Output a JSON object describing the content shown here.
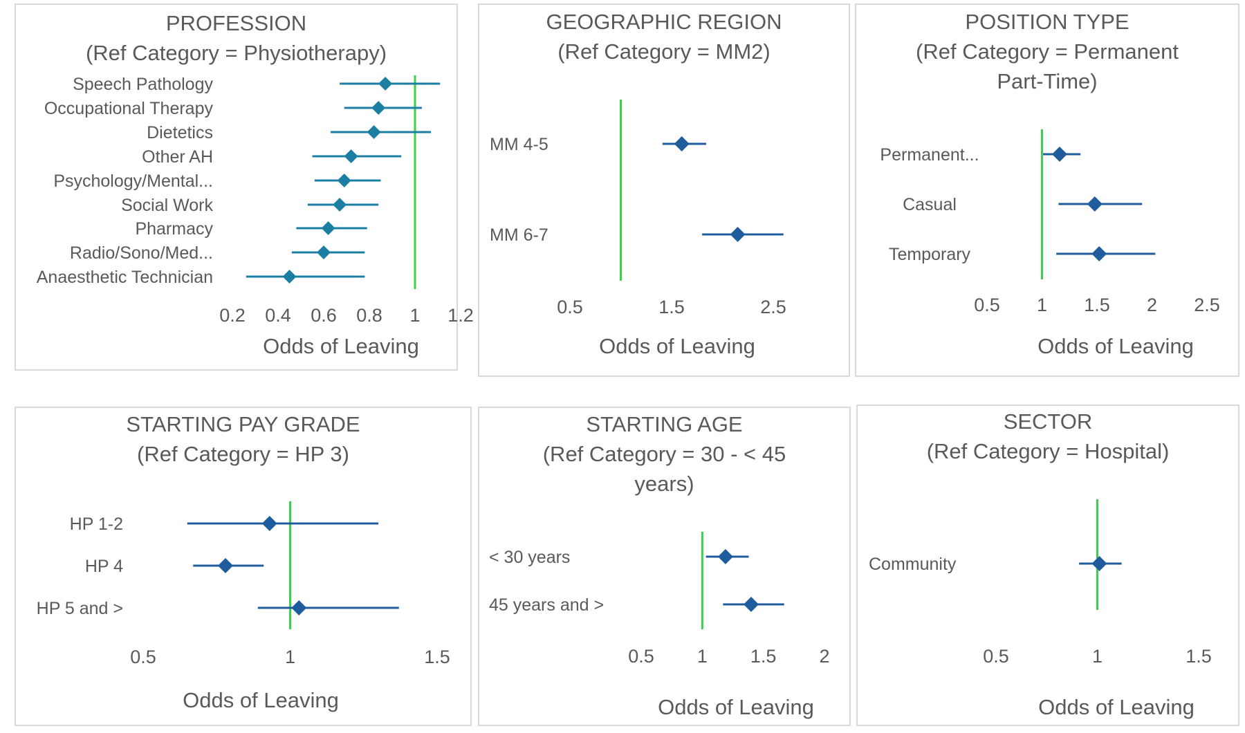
{
  "colors": {
    "reference_line": "#3cd04a",
    "point_light": "#1b7fa3",
    "point_dark": "#1f5c9e",
    "text": "#595959",
    "frame": "#d9d9d9"
  },
  "chart_data": [
    {
      "type": "scatter",
      "subtype": "forest-plot",
      "title": "PROFESSION",
      "subtitle": "(Ref Category = Physiotherapy)",
      "xlabel": "Odds of Leaving",
      "xlim": [
        0.2,
        1.2
      ],
      "xticks": [
        "0.2",
        "0.4",
        "0.6",
        "0.8",
        "1",
        "1.2"
      ],
      "reference": 1,
      "categories": [
        "Speech Pathology",
        "Occupational Therapy",
        "Dietetics",
        "Other AH",
        "Psychology/Mental...",
        "Social Work",
        "Pharmacy",
        "Radio/Sono/Med...",
        "Anaesthetic Technician"
      ],
      "estimate": [
        0.87,
        0.84,
        0.82,
        0.72,
        0.69,
        0.67,
        0.62,
        0.6,
        0.45
      ],
      "lower": [
        0.67,
        0.69,
        0.63,
        0.55,
        0.56,
        0.53,
        0.48,
        0.46,
        0.26
      ],
      "upper": [
        1.11,
        1.03,
        1.07,
        0.94,
        0.85,
        0.84,
        0.79,
        0.78,
        0.78
      ]
    },
    {
      "type": "scatter",
      "subtype": "forest-plot",
      "title": "GEOGRAPHIC REGION",
      "subtitle": "(Ref Category = MM2)",
      "xlabel": "Odds of Leaving",
      "xlim": [
        0.5,
        2.5
      ],
      "xticks": [
        "0.5",
        "1.5",
        "2.5"
      ],
      "reference": 1,
      "categories": [
        "MM 4-5",
        "MM 6-7"
      ],
      "estimate": [
        1.6,
        2.15
      ],
      "lower": [
        1.41,
        1.8
      ],
      "upper": [
        1.84,
        2.6
      ]
    },
    {
      "type": "scatter",
      "subtype": "forest-plot",
      "title": "POSITION TYPE",
      "subtitle": "(Ref Category = Permanent Part-Time)",
      "xlabel": "Odds of Leaving",
      "xlim": [
        0.5,
        2.5
      ],
      "xticks": [
        "0.5",
        "1",
        "1.5",
        "2",
        "2.5"
      ],
      "reference": 1,
      "categories": [
        "Permanent...",
        "Casual",
        "Temporary"
      ],
      "estimate": [
        1.16,
        1.48,
        1.52
      ],
      "lower": [
        1.01,
        1.15,
        1.13
      ],
      "upper": [
        1.35,
        1.91,
        2.03
      ]
    },
    {
      "type": "scatter",
      "subtype": "forest-plot",
      "title": "STARTING PAY GRADE",
      "subtitle": "(Ref Category = HP 3)",
      "xlabel": "Odds of Leaving",
      "xlim": [
        0.5,
        1.5
      ],
      "xticks": [
        "0.5",
        "1",
        "1.5"
      ],
      "reference": 1,
      "categories": [
        "HP 1-2",
        "HP 4",
        "HP 5 and >"
      ],
      "estimate": [
        0.93,
        0.78,
        1.03
      ],
      "lower": [
        0.65,
        0.67,
        0.89
      ],
      "upper": [
        1.3,
        0.91,
        1.37
      ]
    },
    {
      "type": "scatter",
      "subtype": "forest-plot",
      "title": "STARTING AGE",
      "subtitle": "(Ref Category = 30 - < 45 years)",
      "xlabel": "Odds of Leaving",
      "xlim": [
        0.5,
        2
      ],
      "xticks": [
        "0.5",
        "1",
        "1.5",
        "2"
      ],
      "reference": 1,
      "categories": [
        "< 30 years",
        "45 years and >"
      ],
      "estimate": [
        1.19,
        1.4
      ],
      "lower": [
        1.03,
        1.17
      ],
      "upper": [
        1.38,
        1.67
      ]
    },
    {
      "type": "scatter",
      "subtype": "forest-plot",
      "title": "SECTOR",
      "subtitle": "(Ref Category = Hospital)",
      "xlabel": "Odds of Leaving",
      "xlim": [
        0.5,
        1.5
      ],
      "xticks": [
        "0.5",
        "1",
        "1.5"
      ],
      "reference": 1,
      "categories": [
        "Community"
      ],
      "estimate": [
        1.01
      ],
      "lower": [
        0.91
      ],
      "upper": [
        1.12
      ]
    }
  ]
}
